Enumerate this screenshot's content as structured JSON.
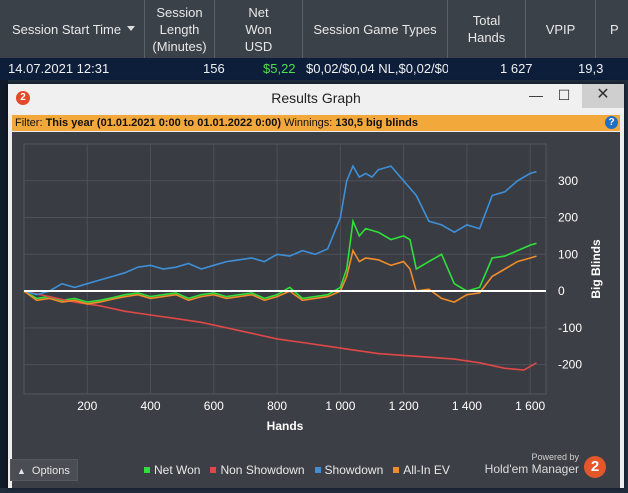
{
  "table": {
    "columns": [
      {
        "label": "Session Start Time"
      },
      {
        "label": "Session\nLength\n(Minutes)"
      },
      {
        "label": "Net\nWon\nUSD"
      },
      {
        "label": "Session Game Types"
      },
      {
        "label": "Total\nHands"
      },
      {
        "label": "VPIP"
      },
      {
        "label": "P"
      }
    ],
    "row": {
      "start_time": "14.07.2021 12:31",
      "length": "156",
      "net_won": "$5,22",
      "game_types": "$0,02/$0,04 NL,$0,02/$0",
      "total_hands": "1 627",
      "vpip": "19,3"
    }
  },
  "dialog": {
    "logo_text": "2",
    "title": "Results Graph",
    "minimize": "—",
    "maximize": "☐",
    "close": "✕",
    "filter_label": "Filter:",
    "filter_value": "This year (01.01.2021 0:00 to 01.01.2022 0:00)",
    "winnings_label": "Winnings:",
    "winnings_value": "130,5 big blinds",
    "help": "?",
    "options_label": "Options",
    "powered_by": "Powered by",
    "brand": "Hold'em Manager",
    "brand_logo": "2"
  },
  "colors": {
    "net_won": "#2fe03a",
    "non_showdown": "#e04848",
    "showdown": "#3f8fd8",
    "allin_ev": "#f08c2a"
  },
  "chart_data": {
    "type": "line",
    "xlabel": "Hands",
    "ylabel": "Big Blinds",
    "xlim": [
      0,
      1650
    ],
    "ylim": [
      -280,
      400
    ],
    "xticks": [
      200,
      400,
      600,
      800,
      1000,
      1200,
      1400,
      1600
    ],
    "xtick_labels": [
      "200",
      "400",
      "600",
      "800",
      "1 000",
      "1 200",
      "1 400",
      "1 600"
    ],
    "yticks": [
      300,
      200,
      100,
      0,
      -100,
      -200
    ],
    "series": [
      {
        "name": "Net Won",
        "key": "net_won",
        "x": [
          0,
          40,
          80,
          120,
          160,
          200,
          240,
          280,
          320,
          360,
          400,
          440,
          480,
          520,
          560,
          600,
          640,
          680,
          720,
          760,
          800,
          840,
          880,
          920,
          960,
          1000,
          1020,
          1040,
          1060,
          1080,
          1120,
          1160,
          1200,
          1220,
          1240,
          1280,
          1320,
          1360,
          1400,
          1440,
          1480,
          1520,
          1560,
          1600,
          1620
        ],
        "y": [
          0,
          -20,
          -15,
          -25,
          -20,
          -30,
          -25,
          -18,
          -10,
          -5,
          -15,
          -10,
          -5,
          -20,
          -10,
          -5,
          -15,
          -10,
          -5,
          -20,
          -10,
          10,
          -20,
          -15,
          -10,
          10,
          60,
          190,
          150,
          170,
          160,
          140,
          150,
          140,
          60,
          80,
          100,
          20,
          0,
          10,
          90,
          95,
          110,
          125,
          130
        ]
      },
      {
        "name": "Non Showdown",
        "key": "non_showdown",
        "x": [
          0,
          80,
          160,
          240,
          320,
          400,
          480,
          560,
          640,
          720,
          800,
          880,
          960,
          1040,
          1120,
          1200,
          1280,
          1360,
          1440,
          1520,
          1580,
          1620
        ],
        "y": [
          0,
          -15,
          -30,
          -40,
          -55,
          -65,
          -75,
          -85,
          -100,
          -115,
          -130,
          -140,
          -150,
          -160,
          -170,
          -175,
          -180,
          -185,
          -195,
          -210,
          -215,
          -195
        ]
      },
      {
        "name": "Showdown",
        "key": "showdown",
        "x": [
          0,
          40,
          80,
          120,
          160,
          200,
          240,
          280,
          320,
          360,
          400,
          440,
          480,
          520,
          560,
          600,
          640,
          680,
          720,
          760,
          800,
          840,
          880,
          920,
          960,
          1000,
          1020,
          1040,
          1060,
          1080,
          1100,
          1120,
          1160,
          1200,
          1240,
          1280,
          1320,
          1360,
          1400,
          1440,
          1480,
          1520,
          1560,
          1600,
          1620
        ],
        "y": [
          0,
          -10,
          0,
          20,
          10,
          20,
          30,
          40,
          50,
          65,
          70,
          60,
          65,
          75,
          60,
          70,
          80,
          85,
          90,
          80,
          100,
          95,
          110,
          100,
          115,
          200,
          300,
          340,
          310,
          320,
          310,
          330,
          340,
          300,
          260,
          190,
          180,
          160,
          180,
          170,
          260,
          270,
          300,
          320,
          325
        ]
      },
      {
        "name": "All-In EV",
        "key": "allin_ev",
        "x": [
          0,
          40,
          80,
          120,
          160,
          200,
          240,
          280,
          320,
          360,
          400,
          440,
          480,
          520,
          560,
          600,
          640,
          680,
          720,
          760,
          800,
          840,
          880,
          920,
          960,
          1000,
          1020,
          1040,
          1060,
          1080,
          1120,
          1160,
          1200,
          1220,
          1240,
          1280,
          1320,
          1360,
          1400,
          1440,
          1480,
          1520,
          1560,
          1600,
          1620
        ],
        "y": [
          0,
          -25,
          -20,
          -30,
          -25,
          -35,
          -30,
          -22,
          -15,
          -10,
          -20,
          -15,
          -10,
          -25,
          -15,
          -10,
          -20,
          -15,
          -10,
          -25,
          -15,
          0,
          -25,
          -20,
          -15,
          0,
          40,
          110,
          80,
          90,
          85,
          70,
          80,
          60,
          0,
          5,
          -20,
          -30,
          -10,
          -5,
          40,
          60,
          80,
          90,
          95
        ]
      }
    ]
  }
}
